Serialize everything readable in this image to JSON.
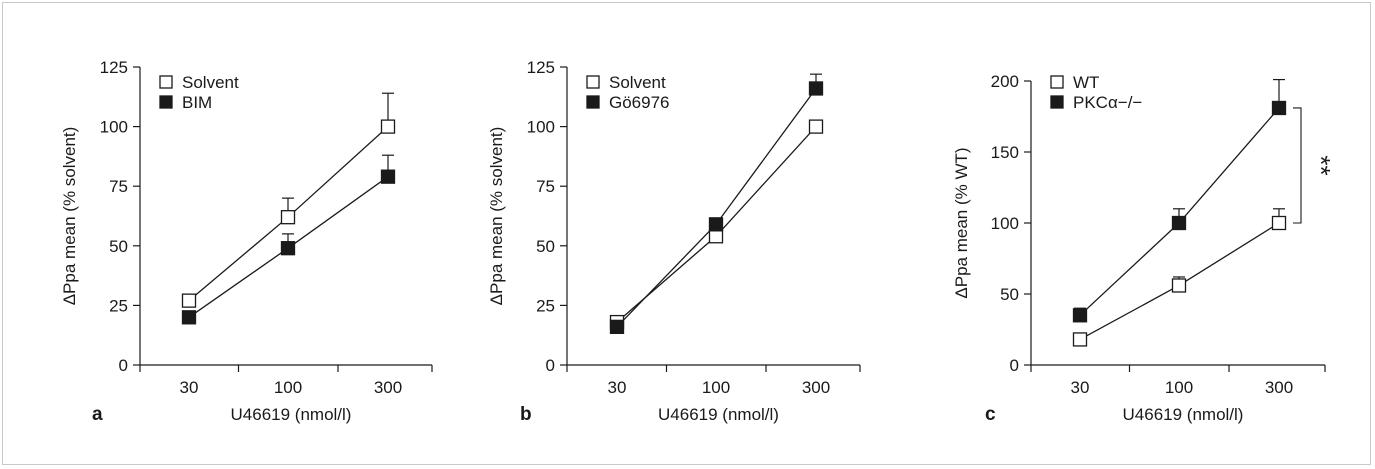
{
  "chart_data": [
    {
      "type": "line",
      "panel_letter": "a",
      "xlabel": "U46619 (nmol/l)",
      "ylabel": "ΔPpa mean (% solvent)",
      "categories": [
        "30",
        "100",
        "300"
      ],
      "ylim": [
        0,
        125
      ],
      "yticks": [
        "0",
        "25",
        "50",
        "75",
        "100",
        "125"
      ],
      "legend_position": "top-left",
      "series": [
        {
          "name": "Solvent",
          "marker": "open-square",
          "values": [
            27,
            62,
            100
          ],
          "errors": [
            0,
            8,
            14
          ]
        },
        {
          "name": "BIM",
          "marker": "filled-square",
          "values": [
            20,
            49,
            79
          ],
          "errors": [
            0,
            6,
            9
          ]
        }
      ]
    },
    {
      "type": "line",
      "panel_letter": "b",
      "xlabel": "U46619 (nmol/l)",
      "ylabel": "ΔPpa mean (% solvent)",
      "categories": [
        "30",
        "100",
        "300"
      ],
      "ylim": [
        0,
        125
      ],
      "yticks": [
        "0",
        "25",
        "50",
        "75",
        "100",
        "125"
      ],
      "legend_position": "top-left",
      "series": [
        {
          "name": "Solvent",
          "marker": "open-square",
          "values": [
            18,
            54,
            100
          ],
          "errors": [
            0,
            0,
            0
          ]
        },
        {
          "name": "Gö6976",
          "marker": "filled-square",
          "values": [
            16,
            59,
            116
          ],
          "errors": [
            0,
            0,
            6
          ]
        }
      ]
    },
    {
      "type": "line",
      "panel_letter": "c",
      "xlabel": "U46619 (nmol/l)",
      "ylabel": "ΔPpa mean (% WT)",
      "categories": [
        "30",
        "100",
        "300"
      ],
      "ylim": [
        0,
        210
      ],
      "yticks": [
        "0",
        "50",
        "100",
        "150",
        "200"
      ],
      "legend_position": "top-left",
      "annotation": "**",
      "series": [
        {
          "name": "WT",
          "marker": "open-square",
          "values": [
            18,
            56,
            100
          ],
          "errors": [
            0,
            6,
            10
          ]
        },
        {
          "name": "PKCα−/−",
          "marker": "filled-square",
          "values": [
            35,
            100,
            181
          ],
          "errors": [
            5,
            10,
            20
          ]
        }
      ]
    }
  ]
}
